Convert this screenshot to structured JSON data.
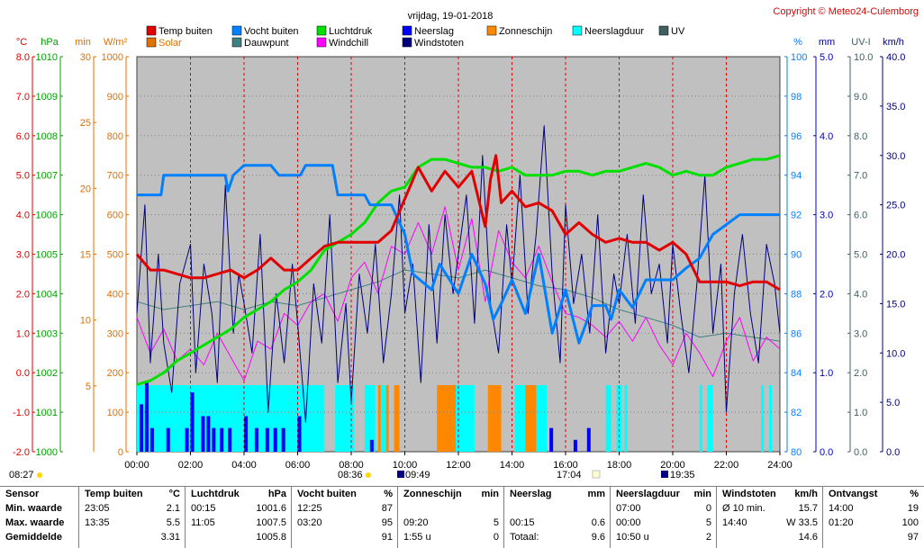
{
  "title": "vrijdag, 19-01-2018",
  "copyright": "Copyright © Meteo24-Culemborg",
  "colors": {
    "background": "#ffffff",
    "plot_background": "#c0c0c0",
    "temp": "#e00000",
    "humidity": "#0080ff",
    "pressure": "#00e000",
    "solar": "#e07000",
    "dewpoint": "#408080",
    "windchill": "#ff00ff",
    "rain": "#0000ff",
    "gusts": "#000080",
    "sunshine": "#ff8800",
    "rain_duration": "#00ffff",
    "uv": "#406060"
  },
  "legend": [
    {
      "label": "Temp buiten",
      "color": "#e00000"
    },
    {
      "label": "Vocht buiten",
      "color": "#0080ff"
    },
    {
      "label": "Luchtdruk",
      "color": "#00e000"
    },
    {
      "label": "Neerslag",
      "color": "#0000ff"
    },
    {
      "label": "Zonneschijn",
      "color": "#ff8800"
    },
    {
      "label": "Neerslagduur",
      "color": "#00ffff"
    },
    {
      "label": "UV",
      "color": "#406060"
    },
    {
      "label": "Solar",
      "color": "#e07000"
    },
    {
      "label": "Dauwpunt",
      "color": "#408080"
    },
    {
      "label": "Windchill",
      "color": "#ff00ff"
    },
    {
      "label": "Windstoten",
      "color": "#000080"
    }
  ],
  "chart_data": {
    "type": "line",
    "title": "vrijdag, 19-01-2018",
    "x_ticks": [
      "00:00",
      "02:00",
      "04:00",
      "06:00",
      "08:00",
      "10:00",
      "12:00",
      "14:00",
      "16:00",
      "18:00",
      "20:00",
      "22:00",
      "24:00"
    ],
    "xlim": [
      "00:00",
      "24:00"
    ],
    "left_axes": [
      {
        "unit": "°C",
        "ticks": [
          "8.0",
          "7.0",
          "6.0",
          "5.0",
          "4.0",
          "3.0",
          "2.0",
          "1.0",
          "0.0",
          "-1.0",
          "-2.0"
        ],
        "range": [
          -2,
          8
        ],
        "color": "#e00000"
      },
      {
        "unit": "hPa",
        "ticks": [
          "1010",
          "1009",
          "1008",
          "1007",
          "1006",
          "1005",
          "1004",
          "1003",
          "1002",
          "1001",
          "1000"
        ],
        "range": [
          1000,
          1010
        ],
        "color": "#00a000"
      },
      {
        "unit": "min",
        "ticks": [
          "30",
          "25",
          "20",
          "15",
          "10",
          "5"
        ],
        "range": [
          0,
          30
        ],
        "color": "#e07000"
      },
      {
        "unit": "W/m²",
        "ticks": [
          "1000",
          "900",
          "800",
          "700",
          "600",
          "500",
          "400",
          "300",
          "200",
          "100",
          "0"
        ],
        "range": [
          0,
          1000
        ],
        "color": "#e07000"
      }
    ],
    "right_axes": [
      {
        "unit": "%",
        "ticks": [
          "100",
          "98",
          "96",
          "94",
          "92",
          "90",
          "88",
          "86",
          "84",
          "82",
          "80"
        ],
        "range": [
          80,
          100
        ],
        "color": "#0080ff"
      },
      {
        "unit": "mm",
        "ticks": [
          "5.0",
          "4.0",
          "3.0",
          "2.0",
          "1.0",
          "0.0"
        ],
        "range": [
          0,
          5
        ],
        "color": "#0000c0"
      },
      {
        "unit": "UV-I",
        "ticks": [
          "10.0",
          "9.0",
          "8.0",
          "7.0",
          "6.0",
          "5.0",
          "4.0",
          "3.0",
          "2.0",
          "1.0",
          "0.0"
        ],
        "range": [
          0,
          10
        ],
        "color": "#406060"
      },
      {
        "unit": "km/h",
        "ticks": [
          "40.0",
          "35.0",
          "30.0",
          "25.0",
          "20.0",
          "15.0",
          "10.0",
          "5.0",
          "0.0"
        ],
        "range": [
          0,
          40
        ],
        "color": "#000080"
      }
    ],
    "grid": true,
    "series": [
      {
        "name": "Temp buiten",
        "unit": "°C",
        "x": [
          0,
          0.5,
          1,
          1.5,
          2,
          2.5,
          3,
          3.5,
          4,
          4.5,
          5,
          5.5,
          6,
          6.5,
          7,
          7.5,
          8,
          8.5,
          9,
          9.5,
          10,
          10.5,
          11,
          11.5,
          12,
          12.5,
          13,
          13.2,
          13.4,
          13.6,
          14,
          14.5,
          15,
          15.5,
          16,
          16.5,
          17,
          17.5,
          18,
          18.5,
          19,
          19.5,
          20,
          20.5,
          21,
          21.5,
          22,
          22.5,
          23,
          23.5,
          24
        ],
        "values": [
          3.0,
          2.6,
          2.6,
          2.5,
          2.4,
          2.4,
          2.5,
          2.6,
          2.4,
          2.6,
          2.9,
          2.6,
          2.6,
          2.9,
          3.2,
          3.3,
          3.3,
          3.3,
          3.3,
          3.6,
          4.4,
          5.2,
          4.6,
          5.1,
          4.7,
          5.1,
          3.7,
          4.9,
          5.5,
          4.3,
          4.6,
          4.2,
          4.3,
          4.1,
          3.5,
          3.8,
          3.5,
          3.3,
          3.4,
          3.3,
          3.3,
          3.1,
          3.3,
          3.0,
          2.3,
          2.3,
          2.3,
          2.2,
          2.3,
          2.3,
          2.1
        ]
      },
      {
        "name": "Vocht buiten",
        "unit": "%",
        "x": [
          0,
          0.9,
          1,
          3.3,
          3.4,
          3.6,
          4,
          5,
          5.3,
          6.1,
          6.3,
          7.3,
          7.5,
          8.5,
          8.7,
          9.5,
          10,
          10.3,
          11,
          11.3,
          12,
          12.5,
          13,
          13.3,
          13.6,
          14,
          14.5,
          15,
          15.5,
          16,
          16.5,
          17,
          17.5,
          17.7,
          18,
          18.5,
          19,
          19.5,
          20,
          20.5,
          21,
          21.5,
          22,
          22.5,
          23,
          24
        ],
        "values": [
          93,
          93,
          94,
          94,
          93.2,
          94,
          94.5,
          94.5,
          94,
          94,
          94.5,
          94.5,
          93,
          93,
          92.5,
          92.5,
          91,
          89,
          88.2,
          89.5,
          88,
          90,
          88.5,
          86.7,
          87.5,
          88.7,
          87,
          90,
          86,
          88.2,
          85.5,
          87.4,
          87.4,
          86.7,
          88.2,
          87.3,
          88.7,
          88.7,
          88.7,
          89.3,
          89.8,
          91,
          91.5,
          92,
          92,
          92
        ]
      },
      {
        "name": "Luchtdruk",
        "unit": "hPa",
        "x": [
          0,
          0.5,
          1,
          1.5,
          2,
          2.5,
          3,
          3.5,
          4,
          4.5,
          5,
          5.5,
          6,
          6.5,
          7,
          7.5,
          8,
          8.5,
          9,
          9.5,
          10,
          10.5,
          11,
          11.5,
          12,
          12.5,
          13,
          13.5,
          14,
          14.5,
          15,
          15.5,
          16,
          16.5,
          17,
          17.5,
          18,
          18.5,
          19,
          19.5,
          20,
          20.5,
          21,
          21.5,
          22,
          22.5,
          23,
          23.5,
          24
        ],
        "values": [
          1001.7,
          1001.8,
          1002.0,
          1002.3,
          1002.5,
          1002.7,
          1002.9,
          1003.1,
          1003.4,
          1003.6,
          1003.8,
          1004.1,
          1004.3,
          1004.6,
          1005.1,
          1005.3,
          1005.5,
          1005.8,
          1006.3,
          1006.6,
          1006.7,
          1007.2,
          1007.4,
          1007.4,
          1007.3,
          1007.2,
          1007.2,
          1007.1,
          1007.2,
          1007.0,
          1007.0,
          1007.0,
          1007.1,
          1007.1,
          1007.0,
          1007.1,
          1007.1,
          1007.2,
          1007.3,
          1007.2,
          1007.0,
          1007.1,
          1007.0,
          1007.0,
          1007.2,
          1007.3,
          1007.4,
          1007.4,
          1007.5
        ]
      },
      {
        "name": "Dauwpunt",
        "unit": "°C",
        "x": [
          0,
          1,
          2,
          3,
          4,
          5,
          6,
          7,
          8,
          9,
          10,
          11,
          12,
          13,
          14,
          15,
          16,
          17,
          18,
          19,
          20,
          21,
          22,
          23,
          24
        ],
        "values": [
          1.8,
          1.6,
          1.7,
          1.8,
          1.6,
          1.8,
          1.7,
          1.9,
          2.1,
          2.3,
          2.6,
          2.5,
          2.4,
          2.6,
          2.4,
          2.2,
          2.1,
          1.9,
          1.6,
          1.4,
          1.2,
          0.9,
          1.0,
          0.9,
          0.8
        ]
      },
      {
        "name": "Windchill",
        "unit": "°C",
        "x": [
          0,
          0.5,
          1,
          1.5,
          2,
          2.5,
          3,
          3.5,
          4,
          4.5,
          5,
          5.5,
          6,
          6.5,
          7,
          7.5,
          8,
          8.5,
          9,
          9.5,
          10,
          10.5,
          11,
          11.5,
          12,
          12.5,
          13,
          13.5,
          14,
          14.5,
          15,
          15.5,
          16,
          16.5,
          17,
          17.5,
          18,
          18.5,
          19,
          19.5,
          20,
          20.5,
          21,
          21.5,
          22,
          22.5,
          23,
          23.5,
          24
        ],
        "values": [
          1.4,
          0.5,
          1.1,
          0.3,
          0.6,
          0.2,
          1.0,
          0.4,
          -0.2,
          0.8,
          0.6,
          1.5,
          1.2,
          1.8,
          2.0,
          1.3,
          2.4,
          2.8,
          2.0,
          3.2,
          3.0,
          3.8,
          3.0,
          4.2,
          2.6,
          3.9,
          1.8,
          3.6,
          2.8,
          2.4,
          3.2,
          2.3,
          1.5,
          1.4,
          1.2,
          0.9,
          1.3,
          0.8,
          1.4,
          0.7,
          0.2,
          1.0,
          0.5,
          -0.1,
          0.8,
          1.4,
          0.3,
          0.9,
          0.6
        ]
      },
      {
        "name": "Windstoten",
        "unit": "km/h",
        "x": [
          0,
          0.3,
          0.5,
          0.8,
          1,
          1.3,
          1.6,
          2,
          2.2,
          2.5,
          2.8,
          3,
          3.3,
          3.6,
          3.8,
          4,
          4.3,
          4.6,
          4.9,
          5.2,
          5.5,
          5.8,
          6,
          6.3,
          6.6,
          6.9,
          7.2,
          7.5,
          7.8,
          8,
          8.3,
          8.6,
          8.9,
          9.2,
          9.5,
          9.8,
          10,
          10.3,
          10.6,
          10.9,
          11.2,
          11.5,
          11.8,
          12,
          12.3,
          12.6,
          12.9,
          13.2,
          13.5,
          13.8,
          14,
          14.3,
          14.6,
          14.9,
          15.2,
          15.5,
          15.8,
          16,
          16.3,
          16.6,
          16.9,
          17.2,
          17.5,
          17.8,
          18,
          18.3,
          18.6,
          18.9,
          19.2,
          19.5,
          19.8,
          20,
          20.3,
          20.6,
          20.9,
          21.2,
          21.5,
          21.8,
          22,
          22.3,
          22.6,
          22.9,
          23.2,
          23.5,
          23.8,
          24
        ],
        "values": [
          14,
          25,
          9,
          20,
          11,
          6,
          17,
          21,
          8,
          19,
          14,
          7,
          27,
          12,
          18,
          15,
          10,
          22,
          4,
          16,
          9,
          19,
          13,
          3,
          17,
          11,
          24,
          7,
          15,
          5,
          18,
          12,
          21,
          9,
          16,
          26,
          14,
          19,
          7,
          23,
          11,
          24,
          16,
          20,
          26,
          13,
          30,
          15,
          10,
          23,
          17,
          28,
          14,
          22,
          33,
          18,
          9,
          25,
          15,
          20,
          12,
          24,
          10,
          18,
          15,
          22,
          13,
          26,
          16,
          19,
          11,
          21,
          14,
          8,
          17,
          28,
          12,
          19,
          4,
          16,
          22,
          14,
          9,
          21,
          17,
          12
        ]
      },
      {
        "name": "Neerslag",
        "unit": "mm",
        "type": "bar",
        "x": [
          0.1,
          0.3,
          0.5,
          1.1,
          1.8,
          2,
          2.4,
          2.6,
          2.8,
          3.1,
          3.4,
          4,
          4.4,
          4.8,
          5.1,
          5.4,
          6,
          8.7,
          15.4,
          16.3,
          16.8
        ],
        "values": [
          0.4,
          0.6,
          0.2,
          0.2,
          0.2,
          0.5,
          0.3,
          0.3,
          0.2,
          0.2,
          0.2,
          0.3,
          0.2,
          0.2,
          0.2,
          0.2,
          0.3,
          0.1,
          0.2,
          0.1,
          0.2
        ]
      }
    ],
    "bands": [
      {
        "name": "Neerslagduur",
        "color": "#00ffff",
        "intervals": [
          [
            0,
            7.0
          ],
          [
            7.4,
            8.1
          ],
          [
            8.5,
            8.9
          ],
          [
            9.1,
            9.3
          ],
          [
            11.5,
            12.6
          ],
          [
            14.1,
            15.3
          ],
          [
            17.5,
            17.7
          ],
          [
            17.9,
            18.1
          ],
          [
            18.2,
            18.3
          ],
          [
            21.0,
            21.1
          ],
          [
            21.3,
            21.5
          ],
          [
            23.3,
            23.4
          ],
          [
            23.6,
            23.7
          ]
        ]
      },
      {
        "name": "Zonneschijn",
        "color": "#ff8800",
        "intervals": [
          [
            9.0,
            9.1
          ],
          [
            9.3,
            9.4
          ],
          [
            9.6,
            9.8
          ],
          [
            11.2,
            11.9
          ],
          [
            13.1,
            13.6
          ],
          [
            14.5,
            14.9
          ]
        ]
      }
    ],
    "sun_events": {
      "left": "08:27",
      "sunrise": "08:36",
      "noon_left": "09:49",
      "sunset_right": "17:04",
      "moon": "19:35"
    }
  },
  "summary": {
    "row_labels": {
      "sensor": "Sensor",
      "min": "Min. waarde",
      "max": "Max. waarde",
      "avg": "Gemiddelde"
    },
    "columns": [
      {
        "title": "Temp buiten",
        "unit": "°C",
        "min_time": "23:05",
        "min_val": "2.1",
        "max_time": "13:35",
        "max_val": "5.5",
        "avg_time": "",
        "avg_val": "3.31"
      },
      {
        "title": "Luchtdruk",
        "unit": "hPa",
        "min_time": "00:15",
        "min_val": "1001.6",
        "max_time": "11:05",
        "max_val": "1007.5",
        "avg_time": "",
        "avg_val": "1005.8"
      },
      {
        "title": "Vocht buiten",
        "unit": "%",
        "min_time": "12:25",
        "min_val": "87",
        "max_time": "03:20",
        "max_val": "95",
        "avg_time": "",
        "avg_val": "91"
      },
      {
        "title": "Zonneschijn",
        "unit": "min",
        "min_time": "",
        "min_val": "",
        "max_time": "09:20",
        "max_val": "5",
        "avg_time": "1:55 u",
        "avg_val": "0"
      },
      {
        "title": "Neerslag",
        "unit": "mm",
        "min_time": "",
        "min_val": "",
        "max_time": "00:15",
        "max_val": "0.6",
        "avg_time": "Totaal:",
        "avg_val": "9.6"
      },
      {
        "title": "Neerslagduur",
        "unit": "min",
        "min_time": "07:00",
        "min_val": "0",
        "max_time": "00:00",
        "max_val": "5",
        "avg_time": "10:50 u",
        "avg_val": "2"
      },
      {
        "title": "Windstoten",
        "unit": "km/h",
        "min_time": "Ø 10 min.",
        "min_val": "15.7",
        "max_time": "14:40",
        "max_val": "W 33.5",
        "avg_time": "",
        "avg_val": "14.6"
      },
      {
        "title": "Ontvangst",
        "unit": "%",
        "min_time": "14:00",
        "min_val": "19",
        "max_time": "01:20",
        "max_val": "100",
        "avg_time": "",
        "avg_val": "97"
      }
    ]
  }
}
